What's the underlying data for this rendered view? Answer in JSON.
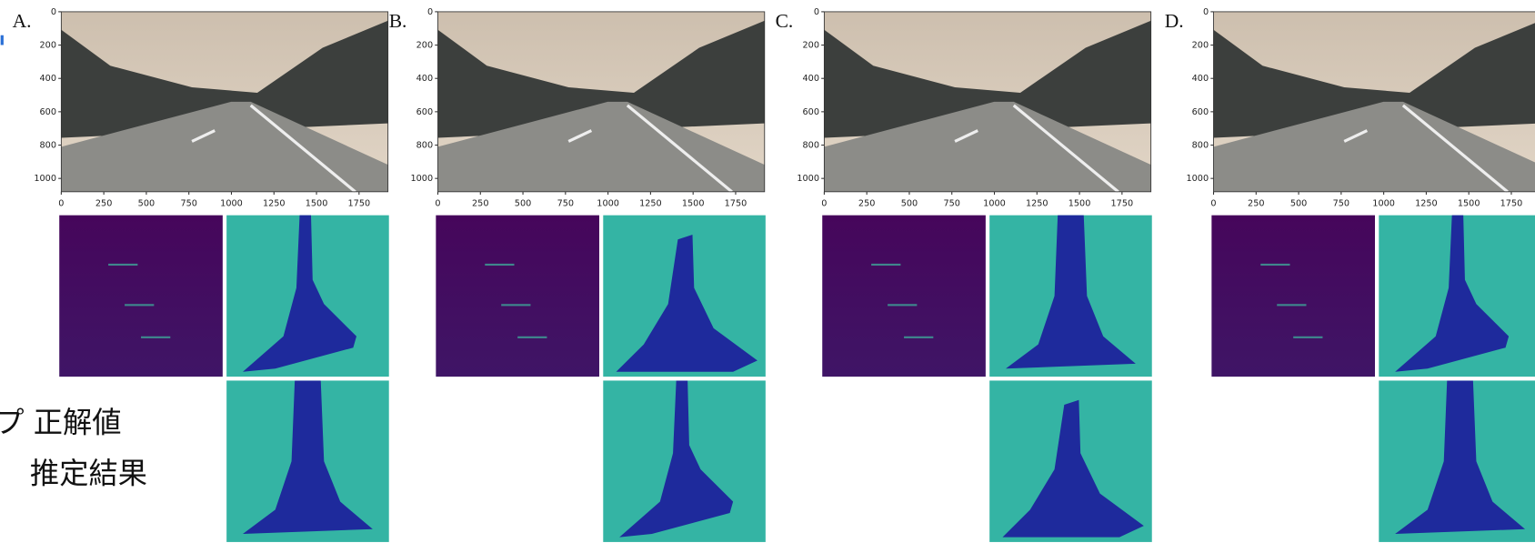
{
  "axes": {
    "xlim": [
      0,
      1920
    ],
    "ylim": [
      0,
      1080
    ],
    "xticks": [
      0,
      250,
      500,
      750,
      1000,
      1250,
      1500,
      1750
    ],
    "yticks": [
      0,
      200,
      400,
      600,
      800,
      1000
    ]
  },
  "panels": [
    {
      "label": "A."
    },
    {
      "label": "B."
    },
    {
      "label": "C."
    },
    {
      "label": "D."
    }
  ],
  "legend": {
    "ground_truth": "プ 正解値",
    "estimate": "推定結果"
  }
}
